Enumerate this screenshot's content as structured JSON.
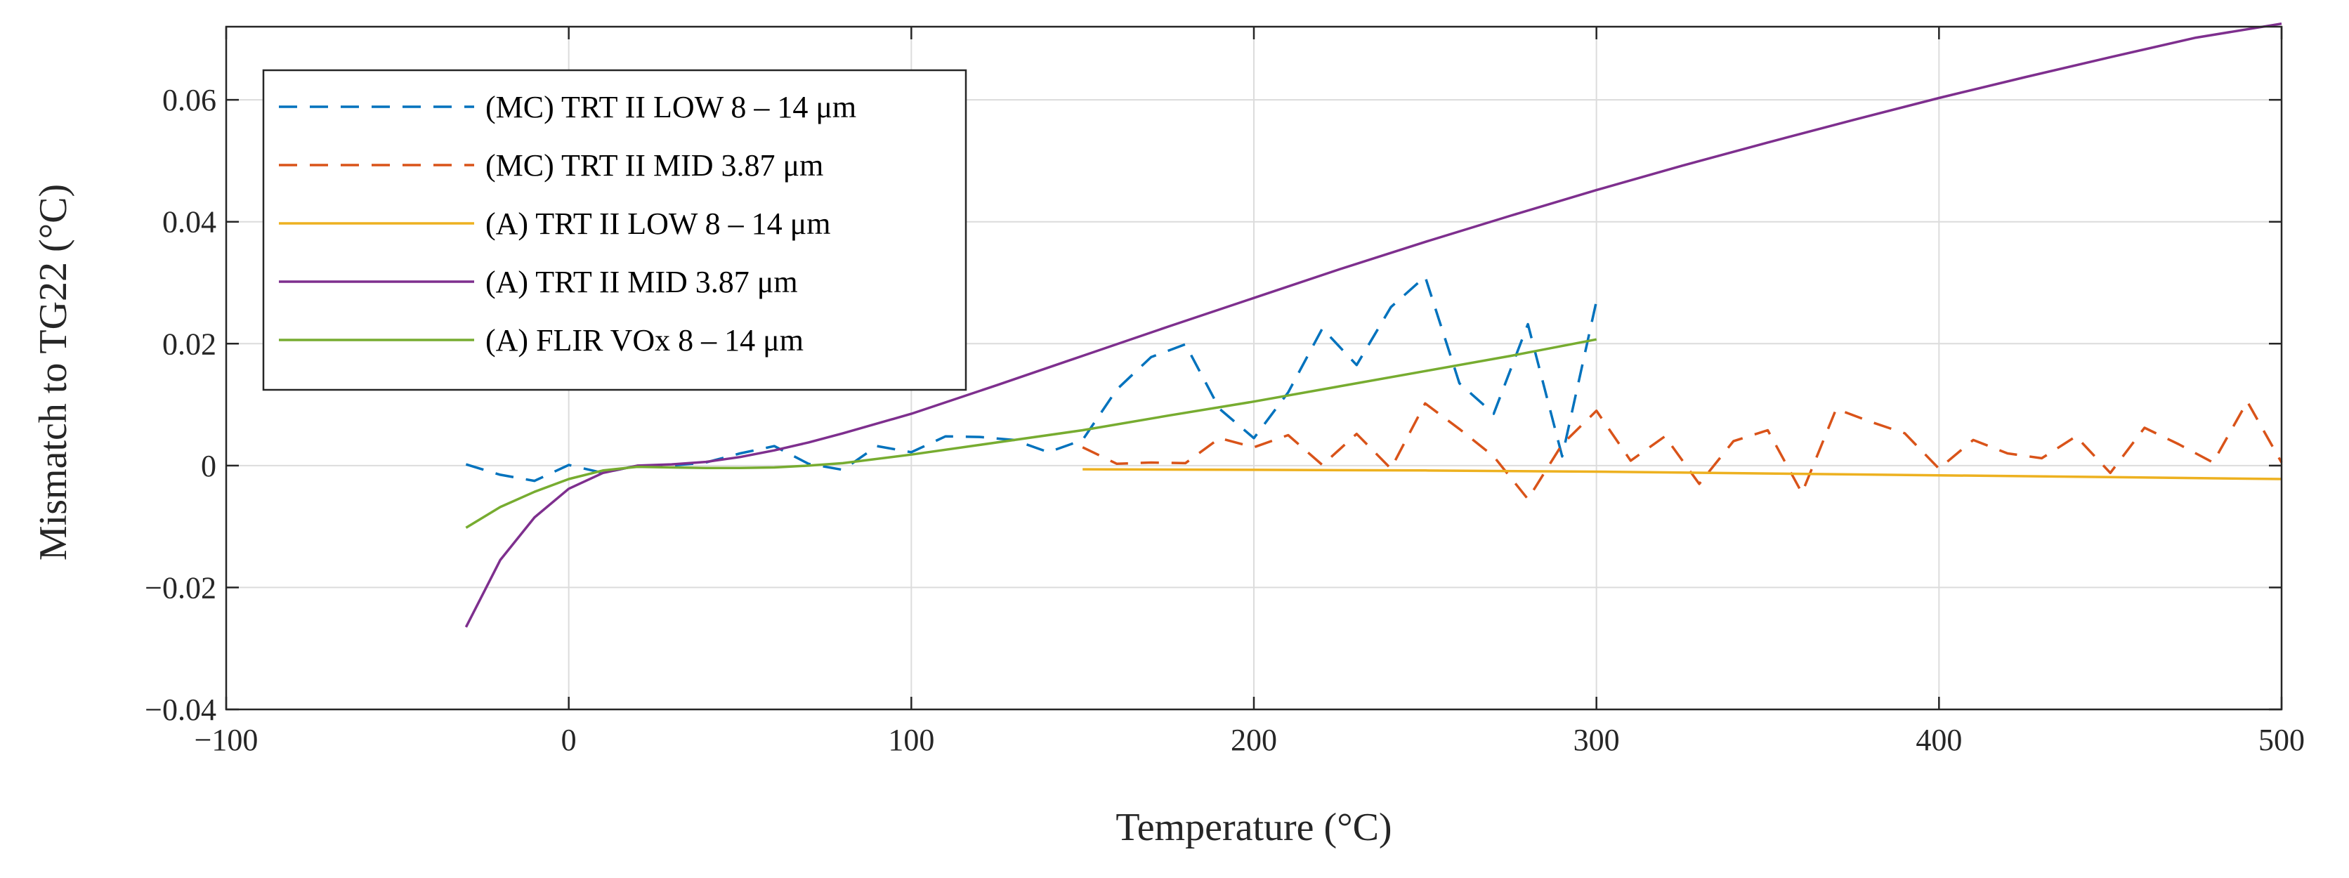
{
  "chart_data": {
    "type": "line",
    "title": "",
    "xlabel": "Temperature (°C)",
    "ylabel": "Mismatch to TG22 (°C)",
    "xlim": [
      -100,
      500
    ],
    "ylim": [
      -0.04,
      0.072
    ],
    "xticks": [
      -100,
      0,
      100,
      200,
      300,
      400,
      500
    ],
    "xtick_labels": [
      "−100",
      "0",
      "100",
      "200",
      "300",
      "400",
      "500"
    ],
    "yticks": [
      -0.04,
      -0.02,
      0,
      0.02,
      0.04,
      0.06
    ],
    "ytick_labels": [
      "−0.04",
      "−0.02",
      "0",
      "0.02",
      "0.04",
      "0.06"
    ],
    "grid": true,
    "legend_position": "top-left",
    "series": [
      {
        "name": "(MC) TRT II LOW 8 – 14 μm",
        "color": "#0072BD",
        "style": "dashed",
        "x": [
          -30,
          -20,
          -10,
          0,
          10,
          20,
          30,
          40,
          50,
          60,
          70,
          80,
          90,
          100,
          110,
          120,
          130,
          140,
          150,
          160,
          170,
          180,
          190,
          200,
          210,
          220,
          230,
          240,
          250,
          260,
          270,
          280,
          290,
          300
        ],
        "y": [
          0.0002,
          -0.0015,
          -0.0025,
          0.0001,
          -0.0012,
          0.0,
          0.0,
          0.0005,
          0.002,
          0.0032,
          0.0003,
          -0.0007,
          0.0032,
          0.0022,
          0.0048,
          0.0047,
          0.0042,
          0.0022,
          0.0042,
          0.0125,
          0.0178,
          0.0199,
          0.0093,
          0.0045,
          0.012,
          0.0225,
          0.0165,
          0.026,
          0.031,
          0.0135,
          0.0085,
          0.0232,
          0.0015,
          0.027
        ]
      },
      {
        "name": "(MC) TRT II MID 3.87 μm",
        "color": "#D95319",
        "style": "dashed",
        "x": [
          150,
          160,
          170,
          180,
          190,
          200,
          210,
          220,
          230,
          240,
          250,
          260,
          270,
          280,
          290,
          300,
          310,
          320,
          330,
          340,
          350,
          360,
          370,
          380,
          390,
          400,
          410,
          420,
          430,
          440,
          450,
          460,
          470,
          480,
          490,
          500
        ],
        "y": [
          0.003,
          0.0003,
          0.0005,
          0.0004,
          0.0045,
          0.003,
          0.005,
          0.0001,
          0.0052,
          -0.0005,
          0.0102,
          0.006,
          0.0015,
          -0.0055,
          0.0035,
          0.009,
          0.0008,
          0.0048,
          -0.003,
          0.004,
          0.0058,
          -0.0045,
          0.0093,
          0.0072,
          0.0053,
          -0.0005,
          0.0042,
          0.002,
          0.0012,
          0.0048,
          -0.0012,
          0.0062,
          0.0035,
          0.0005,
          0.0105,
          0.0005
        ]
      },
      {
        "name": "(A) TRT II LOW 8 – 14 μm",
        "color": "#EDB120",
        "style": "solid",
        "x": [
          150,
          200,
          250,
          300,
          350,
          400,
          450,
          500
        ],
        "y": [
          -0.0006,
          -0.0007,
          -0.0008,
          -0.001,
          -0.0013,
          -0.0016,
          -0.0019,
          -0.0022
        ]
      },
      {
        "name": "(A) TRT II MID 3.87 μm",
        "color": "#7E2F8E",
        "style": "solid",
        "x": [
          -30,
          -20,
          -10,
          0,
          10,
          20,
          30,
          40,
          50,
          60,
          70,
          80,
          100,
          125,
          150,
          175,
          200,
          225,
          250,
          275,
          300,
          325,
          350,
          375,
          400,
          425,
          450,
          475,
          500
        ],
        "y": [
          -0.0265,
          -0.0155,
          -0.0085,
          -0.0038,
          -0.0012,
          0.0,
          0.0002,
          0.0006,
          0.0014,
          0.0025,
          0.0038,
          0.0053,
          0.0085,
          0.0132,
          0.018,
          0.0228,
          0.0275,
          0.0322,
          0.0367,
          0.041,
          0.0452,
          0.0492,
          0.053,
          0.0567,
          0.0603,
          0.0637,
          0.067,
          0.0702,
          0.0725
        ]
      },
      {
        "name": "(A) FLIR VOx 8 – 14 μm",
        "color": "#77AC30",
        "style": "solid",
        "x": [
          -30,
          -20,
          -10,
          0,
          10,
          20,
          30,
          40,
          50,
          60,
          70,
          80,
          100,
          125,
          150,
          175,
          200,
          225,
          250,
          275,
          300
        ],
        "y": [
          -0.0102,
          -0.0068,
          -0.0043,
          -0.0022,
          -0.0008,
          -0.0002,
          -0.0003,
          -0.0004,
          -0.0004,
          -0.0003,
          0.0,
          0.0004,
          0.0018,
          0.0038,
          0.0058,
          0.0082,
          0.0105,
          0.013,
          0.0155,
          0.018,
          0.0207
        ]
      }
    ]
  }
}
